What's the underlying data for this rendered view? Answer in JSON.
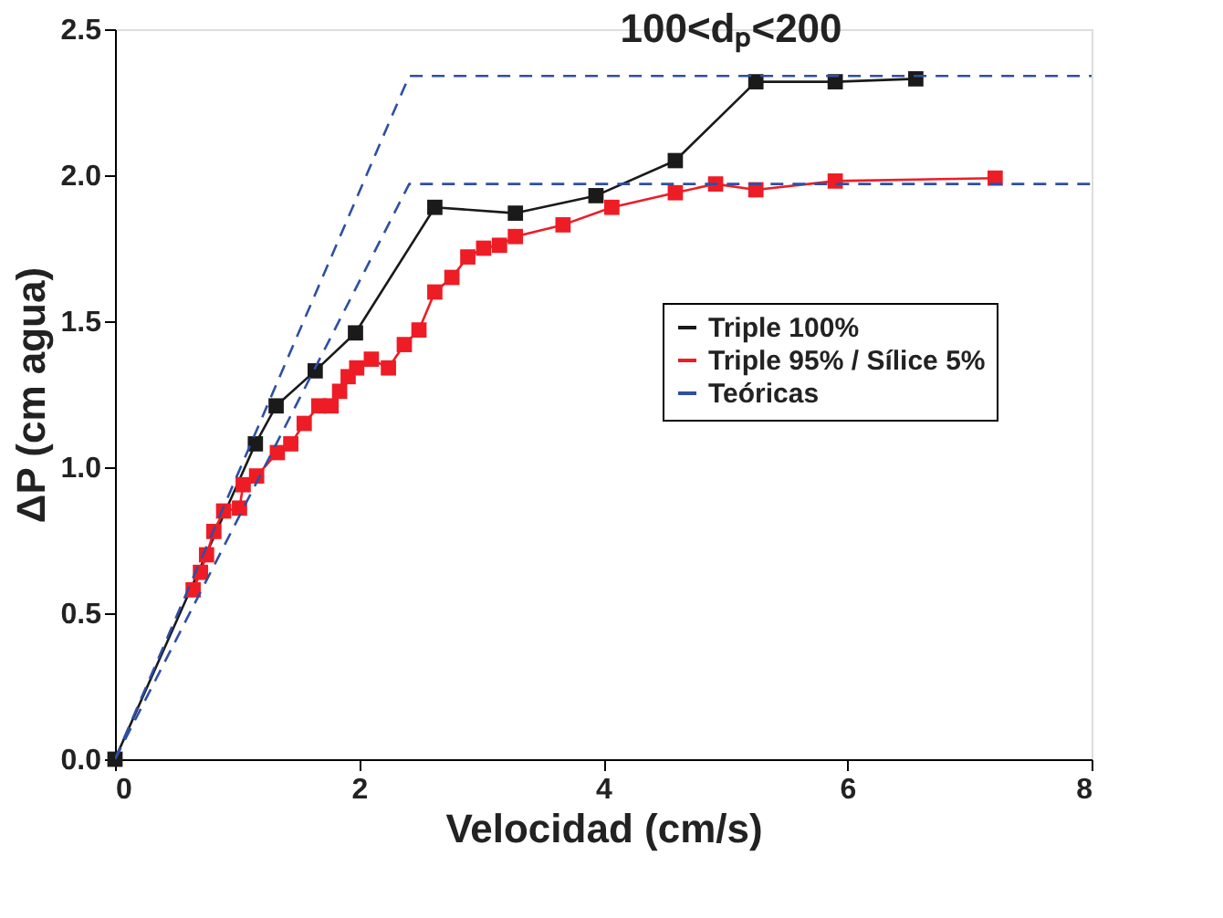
{
  "chart_data": {
    "type": "line",
    "title": "100<dₚ<200",
    "xlabel": "Velocidad (cm/s)",
    "ylabel": "ΔP (cm agua)",
    "xlim": [
      0,
      8
    ],
    "xticks": [
      0,
      2,
      4,
      6,
      8
    ],
    "ylim": [
      0,
      2.5
    ],
    "yticks": [
      {
        "value": 0,
        "label": "0.0"
      },
      0.5,
      {
        "value": 1,
        "label": "1.0"
      },
      1.5,
      {
        "value": 2,
        "label": "2.0"
      },
      2.5
    ],
    "grid": false,
    "legend": "right",
    "series": [
      {
        "name": "Triple 100%",
        "color": "#1a1a1a",
        "marker": "square",
        "line_style": "solid",
        "x": [
          0,
          1.15,
          1.32,
          1.64,
          1.97,
          2.62,
          3.28,
          3.94,
          4.59,
          5.25,
          5.9,
          6.56
        ],
        "values": [
          0,
          1.08,
          1.21,
          1.33,
          1.46,
          1.89,
          1.87,
          1.93,
          2.05,
          2.32,
          2.32,
          2.33
        ]
      },
      {
        "name": "Triple 95% / Sílice 5%",
        "color": "#ee1c25",
        "marker": "square",
        "line_style": "solid",
        "x": [
          0.64,
          0.7,
          0.75,
          0.81,
          0.89,
          1.02,
          1.05,
          1.16,
          1.33,
          1.44,
          1.55,
          1.67,
          1.77,
          1.84,
          1.91,
          1.98,
          2.1,
          2.24,
          2.37,
          2.49,
          2.62,
          2.76,
          2.89,
          3.02,
          3.15,
          3.28,
          3.67,
          4.07,
          4.59,
          4.92,
          5.25,
          5.9,
          7.21
        ],
        "values": [
          0.58,
          0.64,
          0.7,
          0.78,
          0.85,
          0.86,
          0.94,
          0.97,
          1.05,
          1.08,
          1.15,
          1.21,
          1.21,
          1.26,
          1.31,
          1.34,
          1.37,
          1.34,
          1.42,
          1.47,
          1.6,
          1.65,
          1.72,
          1.75,
          1.76,
          1.79,
          1.83,
          1.89,
          1.94,
          1.97,
          1.95,
          1.98,
          1.99
        ]
      },
      {
        "name": "Teóricas",
        "color": "#2e4fa3",
        "marker": "none",
        "line_style": "dashed",
        "x": [
          0,
          2.41,
          8
        ],
        "values": [
          0,
          2.34,
          2.34
        ]
      },
      {
        "color": "#2e4fa3",
        "marker": "none",
        "line_style": "dashed",
        "x": [
          0,
          2.41,
          8
        ],
        "values": [
          0,
          1.97,
          1.97
        ]
      }
    ]
  }
}
